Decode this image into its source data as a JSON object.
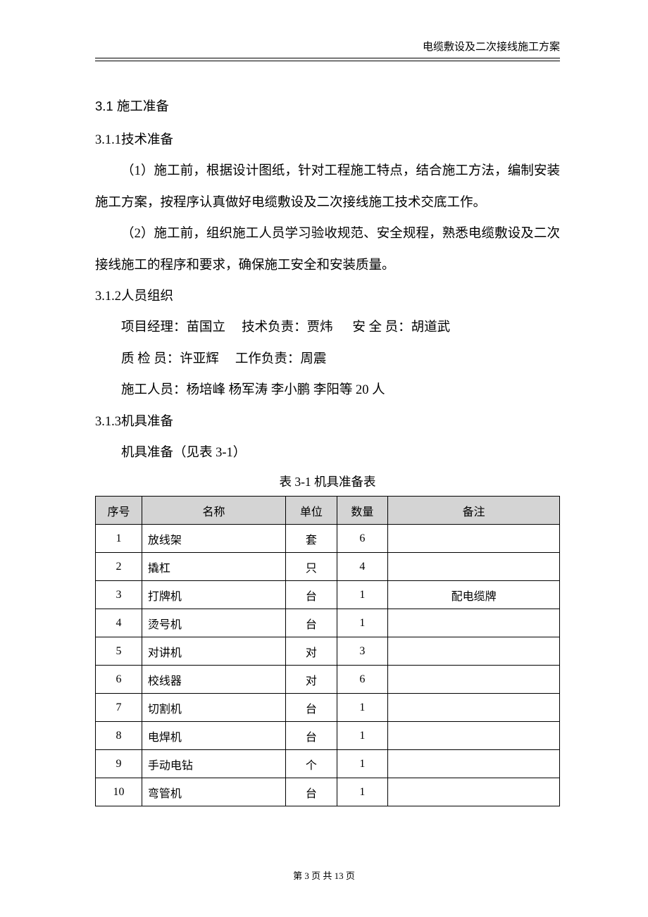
{
  "header": {
    "running_title": "电缆敷设及二次接线施工方案"
  },
  "section_heading": "3.1 施工准备",
  "sub_311": "3.1.1技术准备",
  "para1": "（1）施工前，根据设计图纸，针对工程施工特点，结合施工方法，编制安装施工方案，按程序认真做好电缆敷设及二次接线施工技术交底工作。",
  "para2": "（2）施工前，组织施工人员学习验收规范、安全规程，熟悉电缆敷设及二次接线施工的程序和要求，确保施工安全和安装质量。",
  "sub_312": "3.1.2人员组织",
  "person_line1": "项目经理：苗国立     技术负责：贾炜      安 全 员：胡道武",
  "person_line2": "质 检 员：许亚辉     工作负责：周震",
  "person_line3": "施工人员：杨培峰 杨军涛 李小鹏 李阳等 20 人",
  "sub_313": "3.1.3机具准备",
  "tools_intro": "机具准备（见表 3-1）",
  "table": {
    "caption": "表 3-1 机具准备表",
    "columns": {
      "seq": "序号",
      "name": "名称",
      "unit": "单位",
      "qty": "数量",
      "remark": "备注"
    },
    "rows": [
      {
        "seq": "1",
        "name": "放线架",
        "unit": "套",
        "qty": "6",
        "remark": ""
      },
      {
        "seq": "2",
        "name": "撬杠",
        "unit": "只",
        "qty": "4",
        "remark": ""
      },
      {
        "seq": "3",
        "name": "打牌机",
        "unit": "台",
        "qty": "1",
        "remark": "配电缆牌"
      },
      {
        "seq": "4",
        "name": "烫号机",
        "unit": "台",
        "qty": "1",
        "remark": ""
      },
      {
        "seq": "5",
        "name": "对讲机",
        "unit": "对",
        "qty": "3",
        "remark": ""
      },
      {
        "seq": "6",
        "name": "校线器",
        "unit": "对",
        "qty": "6",
        "remark": ""
      },
      {
        "seq": "7",
        "name": "切割机",
        "unit": "台",
        "qty": "1",
        "remark": ""
      },
      {
        "seq": "8",
        "name": "电焊机",
        "unit": "台",
        "qty": "1",
        "remark": ""
      },
      {
        "seq": "9",
        "name": "手动电钻",
        "unit": "个",
        "qty": "1",
        "remark": ""
      },
      {
        "seq": "10",
        "name": "弯管机",
        "unit": "台",
        "qty": "1",
        "remark": ""
      }
    ]
  },
  "footer": {
    "page_text": "第 3 页 共 13 页"
  }
}
